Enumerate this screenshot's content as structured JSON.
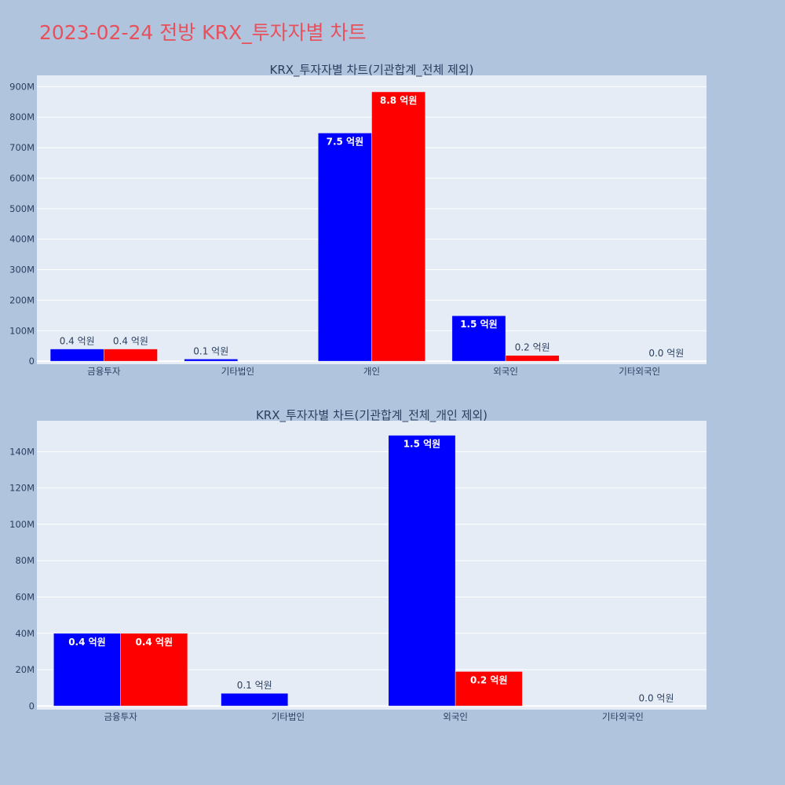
{
  "page_title": "2023-02-24 전방 KRX_투자자별 차트",
  "colors": {
    "series_a": "#0000ff",
    "series_b": "#ff0000",
    "plot_bg": "#e5ecf6",
    "page_bg": "#b0c4de",
    "title": "#e8505b"
  },
  "chart_data": [
    {
      "type": "bar",
      "title": "KRX_투자자별 차트(기관합계_전체 제외)",
      "categories": [
        "금융투자",
        "기타법인",
        "개인",
        "외국인",
        "기타외국인"
      ],
      "series": [
        {
          "values": [
            40000000,
            7000000,
            748000000,
            149000000,
            0
          ],
          "labels": [
            "0.4 억원",
            "0.1 억원",
            "7.5 억원",
            "1.5 억원",
            ""
          ]
        },
        {
          "values": [
            40000000,
            0,
            883000000,
            19000000,
            0
          ],
          "labels": [
            "0.4 억원",
            "",
            "8.8 억원",
            "0.2 억원",
            "0.0 억원"
          ]
        }
      ],
      "yticks": [
        0,
        100000000,
        200000000,
        300000000,
        400000000,
        500000000,
        600000000,
        700000000,
        800000000,
        900000000
      ],
      "ytick_labels": [
        "0",
        "100M",
        "200M",
        "300M",
        "400M",
        "500M",
        "600M",
        "700M",
        "800M",
        "900M"
      ],
      "ylim": [
        -10000000,
        937000000
      ],
      "grid": true
    },
    {
      "type": "bar",
      "title": "KRX_투자자별 차트(기관합계_전체_개인 제외)",
      "categories": [
        "금융투자",
        "기타법인",
        "외국인",
        "기타외국인"
      ],
      "series": [
        {
          "values": [
            40000000,
            7000000,
            149000000,
            0
          ],
          "labels": [
            "0.4 억원",
            "0.1 억원",
            "1.5 억원",
            ""
          ]
        },
        {
          "values": [
            40000000,
            0,
            19000000,
            0
          ],
          "labels": [
            "0.4 억원",
            "",
            "0.2 억원",
            "0.0 억원"
          ]
        }
      ],
      "yticks": [
        0,
        20000000,
        40000000,
        60000000,
        80000000,
        100000000,
        120000000,
        140000000
      ],
      "ytick_labels": [
        "0",
        "20M",
        "40M",
        "60M",
        "80M",
        "100M",
        "120M",
        "140M"
      ],
      "ylim": [
        -2000000,
        157000000
      ],
      "grid": true
    }
  ]
}
